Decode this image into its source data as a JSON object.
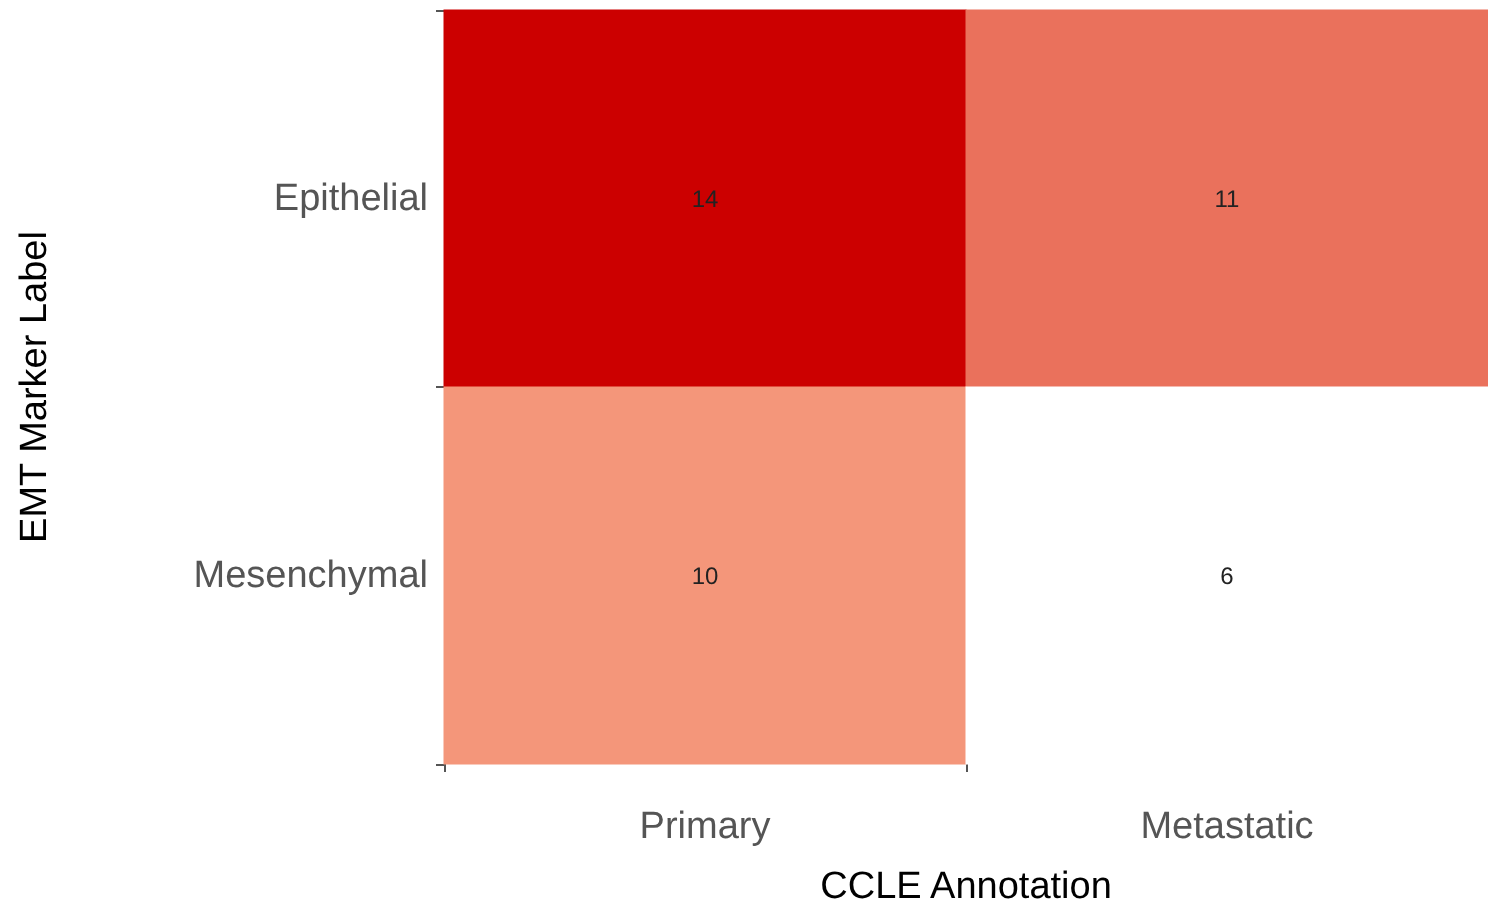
{
  "chart_data": {
    "type": "heatmap",
    "xlabel": "CCLE Annotation",
    "ylabel": "EMT Marker Label",
    "categories": [
      "Primary",
      "Metastatic"
    ],
    "y_categories": [
      "Epithelial",
      "Mesenchymal"
    ],
    "cells": [
      [
        14,
        11
      ],
      [
        10,
        6
      ]
    ],
    "data_labels": true
  }
}
